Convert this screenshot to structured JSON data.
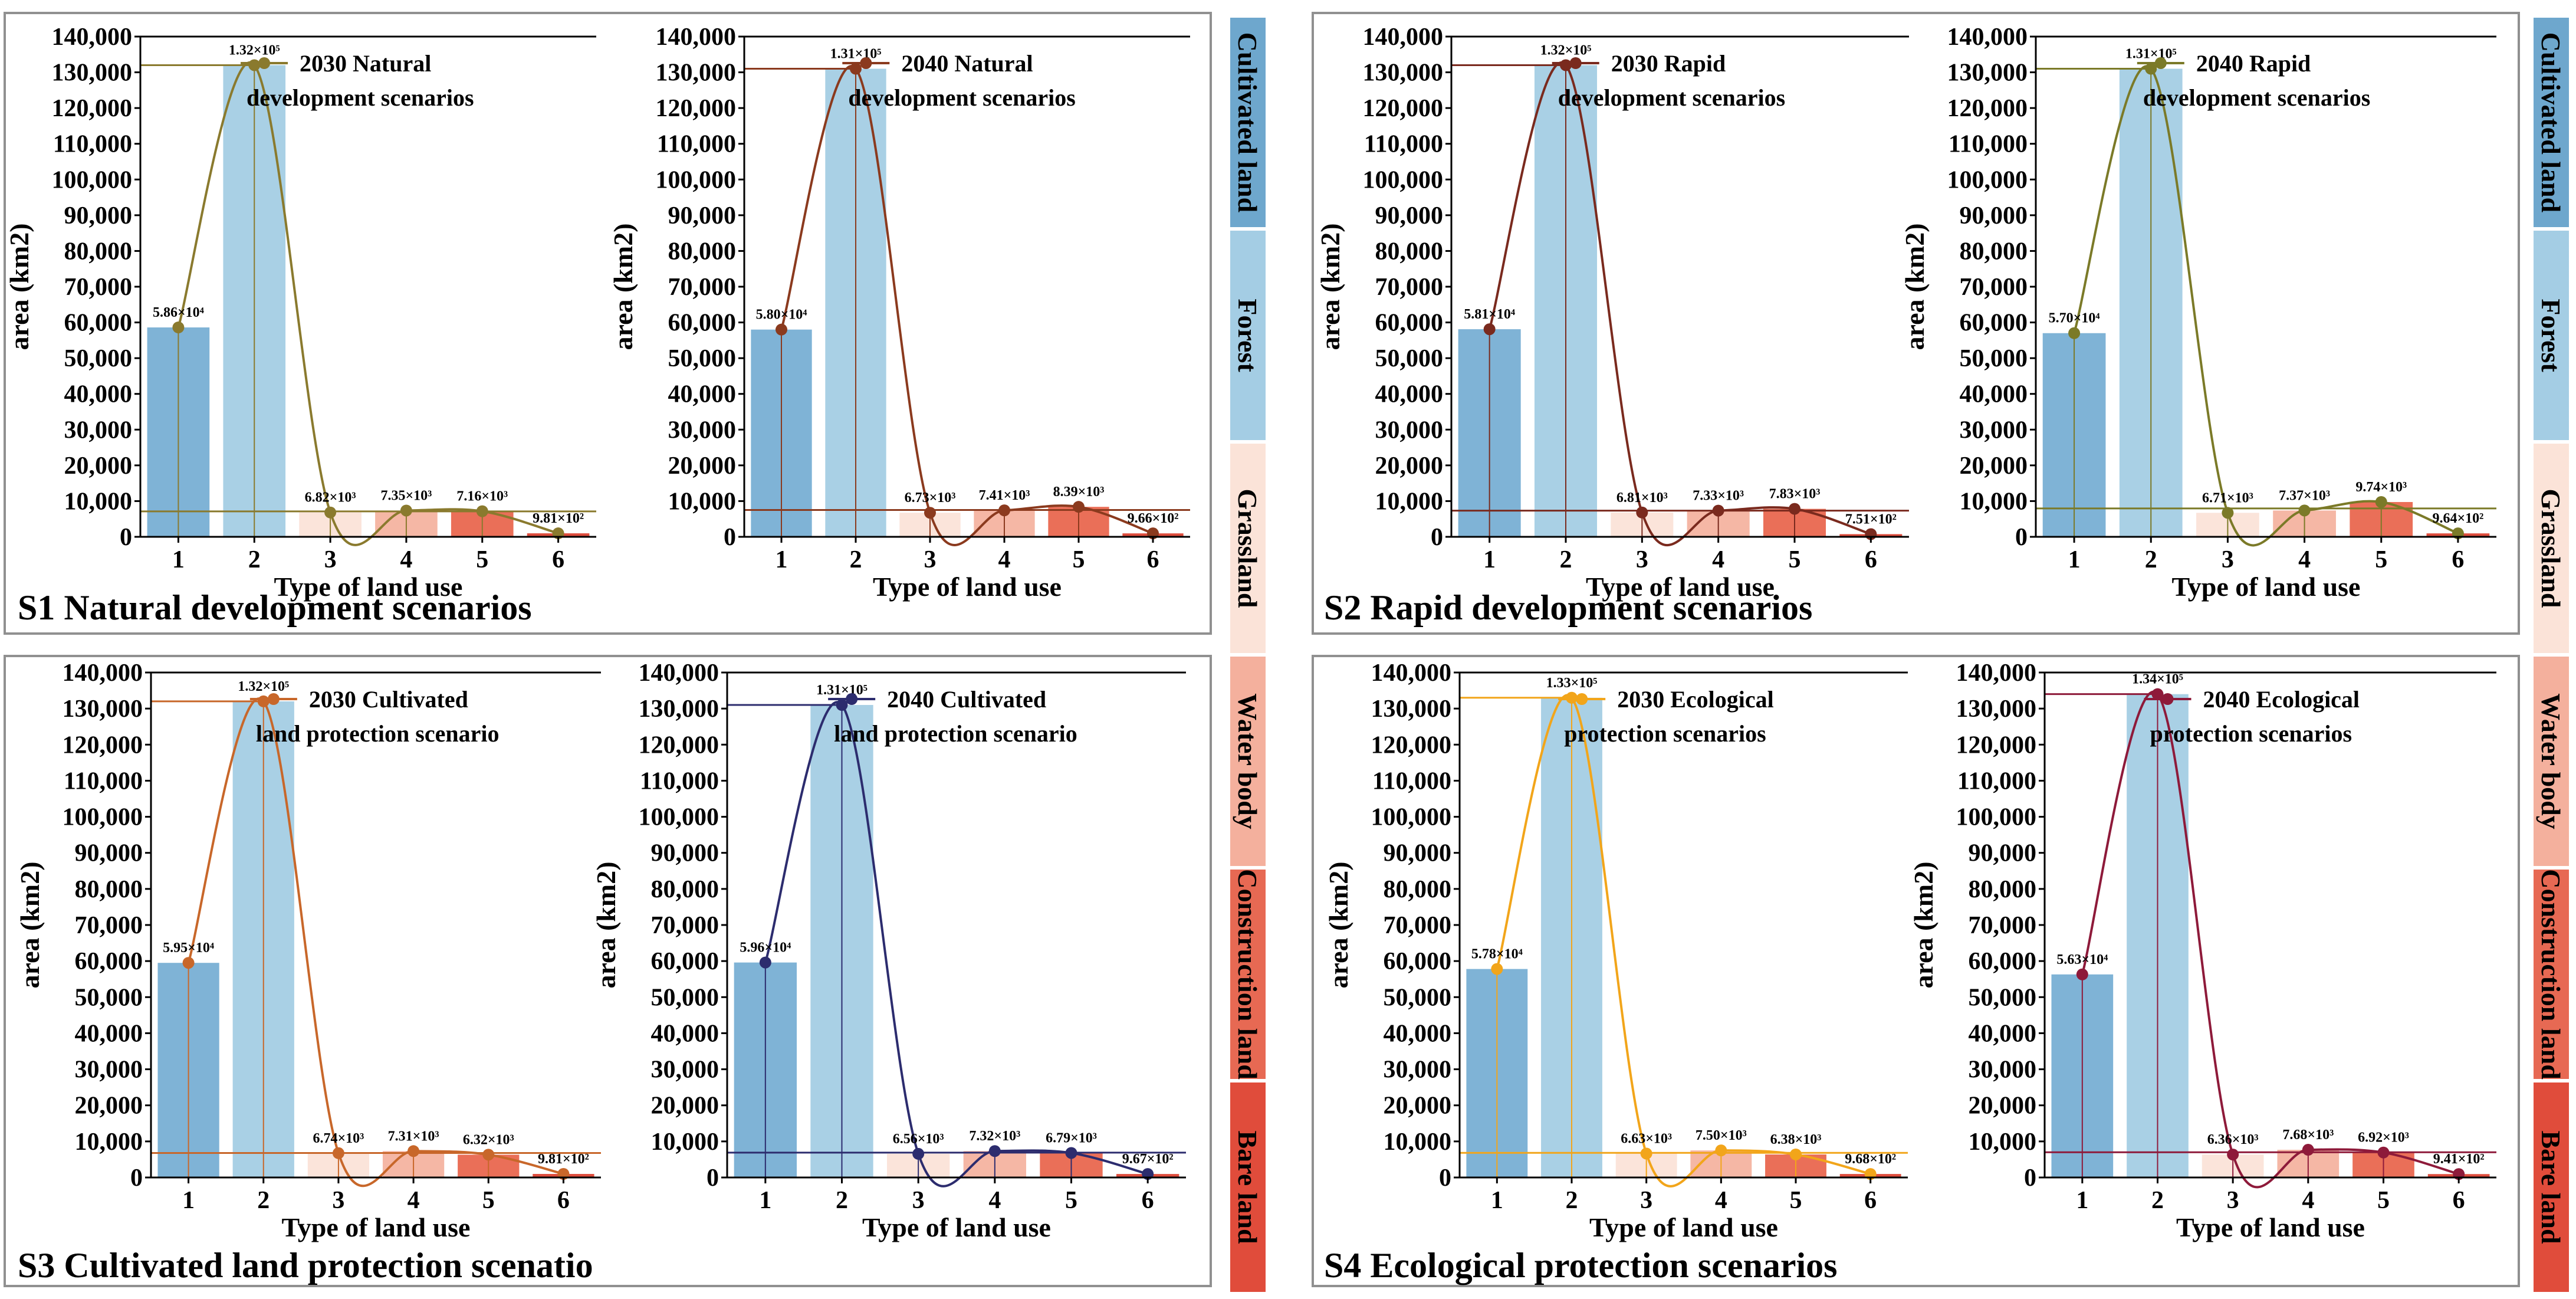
{
  "figure": {
    "colors": {
      "cultivated": "#7fb3d6",
      "forest": "#a9d0e5",
      "grassland": "#fbe4da",
      "waterbody": "#f5b7a5",
      "construction": "#ea6f58",
      "bare": "#de4d3d",
      "panel_border": "#909090",
      "side_cultivated": "#6ea7cd",
      "side_forest": "#a4cde4",
      "side_grassland": "#fbe3d8",
      "side_waterbody": "#f4b09d",
      "side_construction": "#e76953",
      "side_bare": "#e04c3b"
    },
    "legend_side": [
      "Cultivated land",
      "Forest",
      "Grassland",
      "Water body",
      "Construction land",
      "Bare land"
    ]
  },
  "chart_data": [
    {
      "panel_title": "S1 Natural development scenarios",
      "charts": [
        {
          "type": "bar+line",
          "legend": [
            "2030 Natural",
            "development scenarios"
          ],
          "line_color": "#8a7a2e",
          "xlabel": "Type of land use",
          "ylabel": "area (km2)",
          "categories": [
            "1",
            "2",
            "3",
            "4",
            "5",
            "6"
          ],
          "values": [
            58600,
            132000,
            6820,
            7350,
            7160,
            981
          ],
          "labels": [
            "5.86×10⁴",
            "1.32×10⁵",
            "6.82×10³",
            "7.35×10³",
            "7.16×10³",
            "9.81×10²"
          ],
          "ylim": [
            0,
            140000
          ],
          "yticks": [
            "0",
            "10,000",
            "20,000",
            "30,000",
            "40,000",
            "50,000",
            "60,000",
            "70,000",
            "80,000",
            "90,000",
            "100,000",
            "110,000",
            "120,000",
            "130,000",
            "140,000"
          ]
        },
        {
          "type": "bar+line",
          "legend": [
            "2040 Natural",
            "development scenarios"
          ],
          "line_color": "#8b3a1e",
          "xlabel": "Type of land use",
          "ylabel": "area (km2)",
          "categories": [
            "1",
            "2",
            "3",
            "4",
            "5",
            "6"
          ],
          "values": [
            58000,
            131000,
            6730,
            7410,
            8390,
            966
          ],
          "labels": [
            "5.80×10⁴",
            "1.31×10⁵",
            "6.73×10³",
            "7.41×10³",
            "8.39×10³",
            "9.66×10²"
          ],
          "ylim": [
            0,
            140000
          ],
          "yticks": [
            "0",
            "10,000",
            "20,000",
            "30,000",
            "40,000",
            "50,000",
            "60,000",
            "70,000",
            "80,000",
            "90,000",
            "100,000",
            "110,000",
            "120,000",
            "130,000",
            "140,000"
          ]
        }
      ]
    },
    {
      "panel_title": "S2 Rapid development scenarios",
      "charts": [
        {
          "type": "bar+line",
          "legend": [
            "2030 Rapid",
            "development scenarios"
          ],
          "line_color": "#7a2a1e",
          "xlabel": "Type of land use",
          "ylabel": "area (km2)",
          "categories": [
            "1",
            "2",
            "3",
            "4",
            "5",
            "6"
          ],
          "values": [
            58100,
            132000,
            6810,
            7330,
            7830,
            751
          ],
          "labels": [
            "5.81×10⁴",
            "1.32×10⁵",
            "6.81×10³",
            "7.33×10³",
            "7.83×10³",
            "7.51×10²"
          ],
          "ylim": [
            0,
            140000
          ],
          "yticks": [
            "0",
            "10,000",
            "20,000",
            "30,000",
            "40,000",
            "50,000",
            "60,000",
            "70,000",
            "80,000",
            "90,000",
            "100,000",
            "110,000",
            "120,000",
            "130,000",
            "140,000"
          ]
        },
        {
          "type": "bar+line",
          "legend": [
            "2040 Rapid",
            "development scenarios"
          ],
          "line_color": "#7b7a28",
          "xlabel": "Type of land use",
          "ylabel": "area (km2)",
          "categories": [
            "1",
            "2",
            "3",
            "4",
            "5",
            "6"
          ],
          "values": [
            57000,
            131000,
            6710,
            7370,
            9740,
            964
          ],
          "labels": [
            "5.70×10⁴",
            "1.31×10⁵",
            "6.71×10³",
            "7.37×10³",
            "9.74×10³",
            "9.64×10²"
          ],
          "ylim": [
            0,
            140000
          ],
          "yticks": [
            "0",
            "10,000",
            "20,000",
            "30,000",
            "40,000",
            "50,000",
            "60,000",
            "70,000",
            "80,000",
            "90,000",
            "100,000",
            "110,000",
            "120,000",
            "130,000",
            "140,000"
          ]
        }
      ]
    },
    {
      "panel_title": "S3 Cultivated land protection scenatio",
      "charts": [
        {
          "type": "bar+line",
          "legend": [
            "2030 Cultivated",
            "land protection scenario"
          ],
          "line_color": "#c8672a",
          "xlabel": "Type of land use",
          "ylabel": "area (km2)",
          "categories": [
            "1",
            "2",
            "3",
            "4",
            "5",
            "6"
          ],
          "values": [
            59500,
            132000,
            6740,
            7310,
            6320,
            981
          ],
          "labels": [
            "5.95×10⁴",
            "1.32×10⁵",
            "6.74×10³",
            "7.31×10³",
            "6.32×10³",
            "9.81×10²"
          ],
          "ylim": [
            0,
            140000
          ],
          "yticks": [
            "0",
            "10,000",
            "20,000",
            "30,000",
            "40,000",
            "50,000",
            "60,000",
            "70,000",
            "80,000",
            "90,000",
            "100,000",
            "110,000",
            "120,000",
            "130,000",
            "140,000"
          ]
        },
        {
          "type": "bar+line",
          "legend": [
            "2040 Cultivated",
            "land protection scenario"
          ],
          "line_color": "#2c2c6e",
          "xlabel": "Type of land use",
          "ylabel": "area (km2)",
          "categories": [
            "1",
            "2",
            "3",
            "4",
            "5",
            "6"
          ],
          "values": [
            59600,
            131000,
            6560,
            7320,
            6790,
            967
          ],
          "labels": [
            "5.96×10⁴",
            "1.31×10⁵",
            "6.56×10³",
            "7.32×10³",
            "6.79×10³",
            "9.67×10²"
          ],
          "ylim": [
            0,
            140000
          ],
          "yticks": [
            "0",
            "10,000",
            "20,000",
            "30,000",
            "40,000",
            "50,000",
            "60,000",
            "70,000",
            "80,000",
            "90,000",
            "100,000",
            "110,000",
            "120,000",
            "130,000",
            "140,000"
          ]
        }
      ]
    },
    {
      "panel_title": "S4 Ecological protection scenarios",
      "charts": [
        {
          "type": "bar+line",
          "legend": [
            "2030 Ecological",
            "protection scenarios"
          ],
          "line_color": "#f2a51a",
          "xlabel": "Type of land use",
          "ylabel": "area (km2)",
          "categories": [
            "1",
            "2",
            "3",
            "4",
            "5",
            "6"
          ],
          "values": [
            57800,
            133000,
            6630,
            7500,
            6380,
            968
          ],
          "labels": [
            "5.78×10⁴",
            "1.33×10⁵",
            "6.63×10³",
            "7.50×10³",
            "6.38×10³",
            "9.68×10²"
          ],
          "ylim": [
            0,
            140000
          ],
          "yticks": [
            "0",
            "10,000",
            "20,000",
            "30,000",
            "40,000",
            "50,000",
            "60,000",
            "70,000",
            "80,000",
            "90,000",
            "100,000",
            "110,000",
            "120,000",
            "130,000",
            "140,000"
          ]
        },
        {
          "type": "bar+line",
          "legend": [
            "2040 Ecological",
            "protection scenarios"
          ],
          "line_color": "#8e1a3a",
          "xlabel": "Type of land use",
          "ylabel": "area (km2)",
          "categories": [
            "1",
            "2",
            "3",
            "4",
            "5",
            "6"
          ],
          "values": [
            56300,
            134000,
            6360,
            7680,
            6920,
            941
          ],
          "labels": [
            "5.63×10⁴",
            "1.34×10⁵",
            "6.36×10³",
            "7.68×10³",
            "6.92×10³",
            "9.41×10²"
          ],
          "ylim": [
            0,
            140000
          ],
          "yticks": [
            "0",
            "10,000",
            "20,000",
            "30,000",
            "40,000",
            "50,000",
            "60,000",
            "70,000",
            "80,000",
            "90,000",
            "100,000",
            "110,000",
            "120,000",
            "130,000",
            "140,000"
          ]
        }
      ]
    }
  ]
}
